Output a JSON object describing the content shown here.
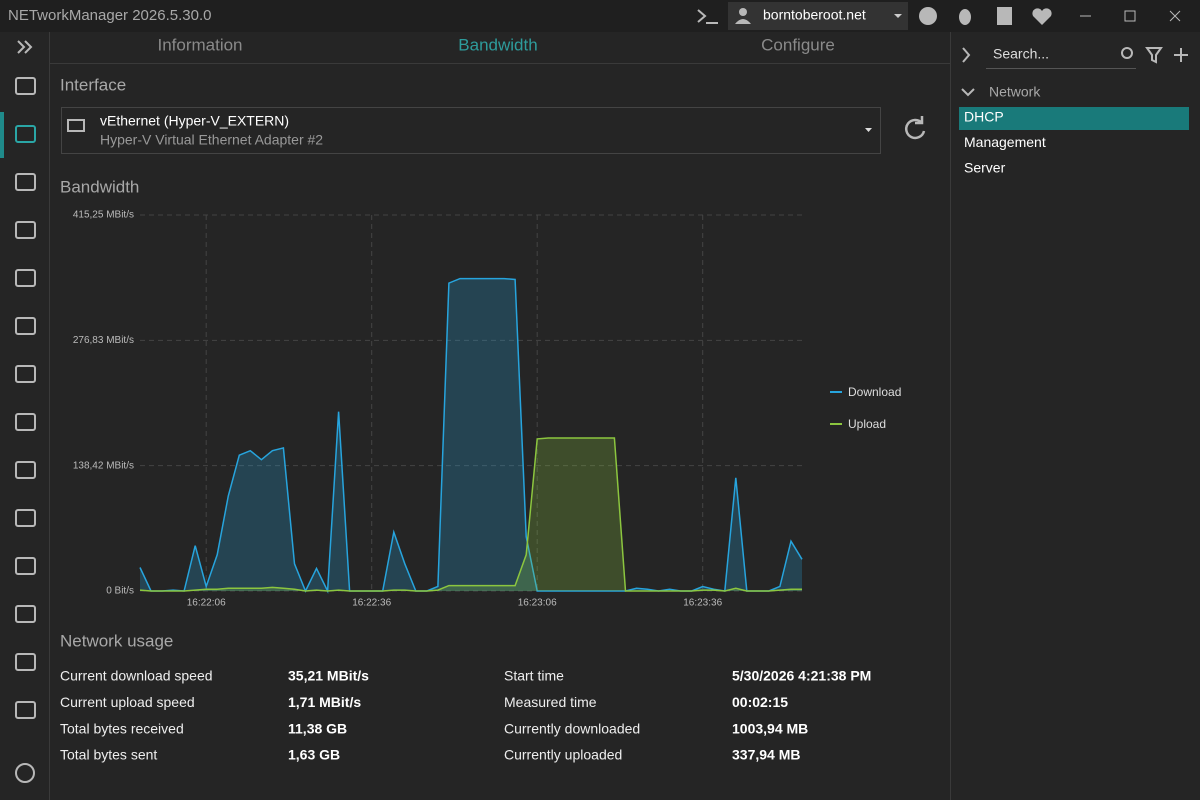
{
  "window": {
    "title": "NETworkManager 2026.5.30.0",
    "user": "borntoberoot.net"
  },
  "tabs": [
    "Information",
    "Bandwidth",
    "Configure"
  ],
  "interface": {
    "label": "Interface",
    "name": "vEthernet (Hyper-V_EXTERN)",
    "description": "Hyper-V Virtual Ethernet Adapter #2"
  },
  "chart_data": {
    "type": "area",
    "title": "Bandwidth",
    "x": [
      "16:21:54",
      "16:21:56",
      "16:21:58",
      "16:22:00",
      "16:22:02",
      "16:22:04",
      "16:22:06",
      "16:22:08",
      "16:22:10",
      "16:22:12",
      "16:22:14",
      "16:22:16",
      "16:22:18",
      "16:22:20",
      "16:22:22",
      "16:22:24",
      "16:22:26",
      "16:22:28",
      "16:22:30",
      "16:22:32",
      "16:22:34",
      "16:22:36",
      "16:22:38",
      "16:22:40",
      "16:22:42",
      "16:22:44",
      "16:22:46",
      "16:22:48",
      "16:22:50",
      "16:22:52",
      "16:22:54",
      "16:22:56",
      "16:22:58",
      "16:23:00",
      "16:23:02",
      "16:23:04",
      "16:23:06",
      "16:23:08",
      "16:23:10",
      "16:23:12",
      "16:23:14",
      "16:23:16",
      "16:23:18",
      "16:23:20",
      "16:23:22",
      "16:23:24",
      "16:23:26",
      "16:23:28",
      "16:23:30",
      "16:23:32",
      "16:23:34",
      "16:23:36",
      "16:23:38",
      "16:23:40",
      "16:23:42",
      "16:23:44",
      "16:23:46",
      "16:23:48",
      "16:23:50",
      "16:23:52",
      "16:23:54"
    ],
    "xlim": [
      "16:21:54",
      "16:23:54"
    ],
    "xticks": [
      "16:22:06",
      "16:22:36",
      "16:23:06",
      "16:23:36"
    ],
    "ylim": [
      0,
      415.25
    ],
    "yticks": [
      {
        "value": 0,
        "label": "0 Bit/s"
      },
      {
        "value": 138.42,
        "label": "138,42 MBit/s"
      },
      {
        "value": 276.83,
        "label": "276,83 MBit/s"
      },
      {
        "value": 415.25,
        "label": "415,25 MBit/s"
      }
    ],
    "grid": true,
    "legend": "right",
    "series": [
      {
        "name": "Download",
        "color": "#27a4dd",
        "values": [
          26,
          0,
          0,
          1,
          0,
          50,
          5,
          40,
          105,
          150,
          155,
          145,
          155,
          158,
          30,
          0,
          25,
          0,
          198,
          0,
          0,
          0,
          0,
          65,
          30,
          0,
          0,
          5,
          340,
          345,
          345,
          345,
          345,
          345,
          344,
          60,
          0,
          0,
          0,
          0,
          0,
          0,
          0,
          0,
          0,
          3,
          2,
          0,
          2,
          0,
          0,
          5,
          2,
          0,
          125,
          0,
          0,
          0,
          5,
          55,
          35
        ]
      },
      {
        "name": "Upload",
        "color": "#8cc63f",
        "values": [
          1,
          0,
          0,
          0,
          0,
          1,
          2,
          2,
          3,
          3,
          3,
          3,
          4,
          3,
          2,
          0,
          1,
          0,
          1,
          0,
          0,
          0,
          0,
          1,
          1,
          0,
          0,
          1,
          6,
          6,
          6,
          6,
          6,
          6,
          6,
          40,
          168,
          169,
          169,
          169,
          169,
          169,
          169,
          169,
          0,
          0,
          0,
          0,
          0,
          0,
          0,
          1,
          1,
          0,
          3,
          0,
          0,
          0,
          1,
          2,
          2
        ]
      }
    ]
  },
  "usage": {
    "title": "Network usage",
    "rows": [
      [
        "Current download speed",
        "35,21 MBit/s",
        "Start time",
        "5/30/2026 4:21:38 PM"
      ],
      [
        "Current upload speed",
        "1,71 MBit/s",
        "Measured time",
        "00:02:15"
      ],
      [
        "Total bytes received",
        "11,38 GB",
        "Currently downloaded",
        "1003,94 MB"
      ],
      [
        "Total bytes sent",
        "1,63 GB",
        "Currently uploaded",
        "337,94 MB"
      ]
    ]
  },
  "sidebar": {
    "search": "Search...",
    "group": "Network",
    "items": [
      "DHCP",
      "Management",
      "Server"
    ]
  }
}
